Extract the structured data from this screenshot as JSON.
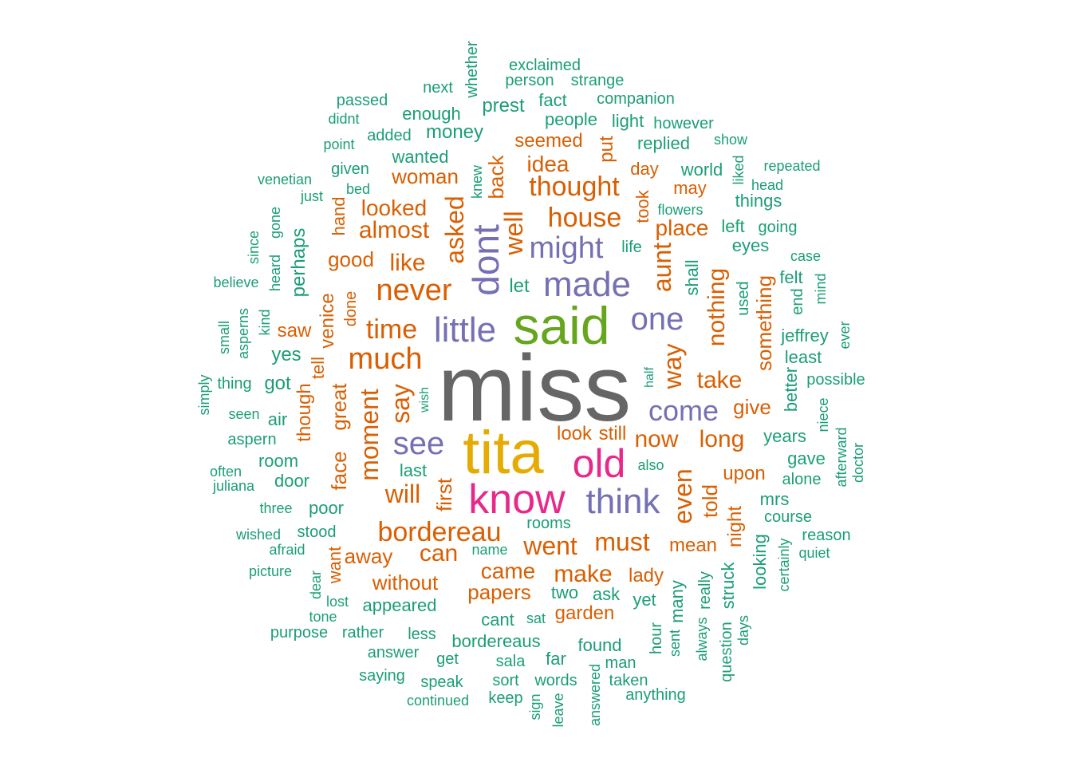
{
  "palette": {
    "green": "#1b9e77",
    "orange": "#d95f02",
    "purple": "#7570b3",
    "pink": "#e7298a",
    "lime": "#66a61e",
    "gold": "#e6ab02",
    "gray": "#666666"
  },
  "words": [
    {
      "text": "miss",
      "c": "gray"
    },
    {
      "text": "tita",
      "c": "gold"
    },
    {
      "text": "said",
      "c": "lime"
    },
    {
      "text": "know",
      "c": "pink"
    },
    {
      "text": "old",
      "c": "pink"
    },
    {
      "text": "made",
      "c": "purple"
    },
    {
      "text": "little",
      "c": "purple"
    },
    {
      "text": "dont",
      "c": "purple"
    },
    {
      "text": "might",
      "c": "purple"
    },
    {
      "text": "one",
      "c": "purple"
    },
    {
      "text": "see",
      "c": "purple"
    },
    {
      "text": "think",
      "c": "purple"
    },
    {
      "text": "come",
      "c": "purple"
    },
    {
      "text": "never",
      "c": "orange"
    },
    {
      "text": "much",
      "c": "orange"
    },
    {
      "text": "time",
      "c": "orange"
    },
    {
      "text": "bordereau",
      "c": "orange"
    },
    {
      "text": "thought",
      "c": "orange"
    },
    {
      "text": "house",
      "c": "orange"
    },
    {
      "text": "asked",
      "c": "orange"
    },
    {
      "text": "well",
      "c": "orange"
    },
    {
      "text": "aunt",
      "c": "orange"
    },
    {
      "text": "way",
      "c": "orange"
    },
    {
      "text": "moment",
      "c": "orange"
    },
    {
      "text": "say",
      "c": "orange"
    },
    {
      "text": "will",
      "c": "orange"
    },
    {
      "text": "went",
      "c": "orange"
    },
    {
      "text": "must",
      "c": "orange"
    },
    {
      "text": "even",
      "c": "orange"
    },
    {
      "text": "nothing",
      "c": "orange"
    },
    {
      "text": "almost",
      "c": "orange"
    },
    {
      "text": "looked",
      "c": "orange"
    },
    {
      "text": "like",
      "c": "orange"
    },
    {
      "text": "idea",
      "c": "orange"
    },
    {
      "text": "place",
      "c": "orange"
    },
    {
      "text": "woman",
      "c": "orange"
    },
    {
      "text": "back",
      "c": "orange"
    },
    {
      "text": "take",
      "c": "orange"
    },
    {
      "text": "now",
      "c": "orange"
    },
    {
      "text": "long",
      "c": "orange"
    },
    {
      "text": "first",
      "c": "orange"
    },
    {
      "text": "face",
      "c": "orange"
    },
    {
      "text": "great",
      "c": "orange"
    },
    {
      "text": "can",
      "c": "orange"
    },
    {
      "text": "came",
      "c": "orange"
    },
    {
      "text": "make",
      "c": "orange"
    },
    {
      "text": "told",
      "c": "orange"
    },
    {
      "text": "something",
      "c": "orange"
    },
    {
      "text": "good",
      "c": "orange"
    },
    {
      "text": "venice",
      "c": "orange"
    },
    {
      "text": "seemed",
      "c": "orange"
    },
    {
      "text": "put",
      "c": "orange"
    },
    {
      "text": "day",
      "c": "orange"
    },
    {
      "text": "may",
      "c": "orange"
    },
    {
      "text": "took",
      "c": "orange"
    },
    {
      "text": "perhaps",
      "c": "green"
    },
    {
      "text": "give",
      "c": "orange"
    },
    {
      "text": "upon",
      "c": "orange"
    },
    {
      "text": "papers",
      "c": "orange"
    },
    {
      "text": "without",
      "c": "orange"
    },
    {
      "text": "away",
      "c": "orange"
    },
    {
      "text": "mean",
      "c": "orange"
    },
    {
      "text": "night",
      "c": "orange"
    },
    {
      "text": "lady",
      "c": "orange"
    },
    {
      "text": "garden",
      "c": "orange"
    },
    {
      "text": "look",
      "c": "orange"
    },
    {
      "text": "still",
      "c": "orange"
    },
    {
      "text": "though",
      "c": "orange"
    },
    {
      "text": "saw",
      "c": "orange"
    },
    {
      "text": "tell",
      "c": "orange"
    },
    {
      "text": "done",
      "c": "orange"
    },
    {
      "text": "hand",
      "c": "orange"
    },
    {
      "text": "want",
      "c": "orange"
    },
    {
      "text": "shall",
      "c": "green"
    },
    {
      "text": "let",
      "c": "green"
    },
    {
      "text": "last",
      "c": "green"
    },
    {
      "text": "yes",
      "c": "green"
    },
    {
      "text": "got",
      "c": "green"
    },
    {
      "text": "air",
      "c": "green"
    },
    {
      "text": "room",
      "c": "green"
    },
    {
      "text": "door",
      "c": "green"
    },
    {
      "text": "poor",
      "c": "green"
    },
    {
      "text": "stood",
      "c": "green"
    },
    {
      "text": "wanted",
      "c": "green"
    },
    {
      "text": "money",
      "c": "green"
    },
    {
      "text": "enough",
      "c": "green"
    },
    {
      "text": "prest",
      "c": "green"
    },
    {
      "text": "people",
      "c": "green"
    },
    {
      "text": "replied",
      "c": "green"
    },
    {
      "text": "world",
      "c": "green"
    },
    {
      "text": "things",
      "c": "green"
    },
    {
      "text": "left",
      "c": "green"
    },
    {
      "text": "eyes",
      "c": "green"
    },
    {
      "text": "life",
      "c": "green"
    },
    {
      "text": "felt",
      "c": "green"
    },
    {
      "text": "end",
      "c": "green"
    },
    {
      "text": "jeffrey",
      "c": "green"
    },
    {
      "text": "least",
      "c": "green"
    },
    {
      "text": "better",
      "c": "green"
    },
    {
      "text": "years",
      "c": "green"
    },
    {
      "text": "gave",
      "c": "green"
    },
    {
      "text": "alone",
      "c": "green"
    },
    {
      "text": "mrs",
      "c": "green"
    },
    {
      "text": "course",
      "c": "green"
    },
    {
      "text": "looking",
      "c": "green"
    },
    {
      "text": "rooms",
      "c": "green"
    },
    {
      "text": "also",
      "c": "green"
    },
    {
      "text": "two",
      "c": "green"
    },
    {
      "text": "ask",
      "c": "green"
    },
    {
      "text": "yet",
      "c": "green"
    },
    {
      "text": "many",
      "c": "green"
    },
    {
      "text": "really",
      "c": "green"
    },
    {
      "text": "struck",
      "c": "green"
    },
    {
      "text": "appeared",
      "c": "green"
    },
    {
      "text": "cant",
      "c": "green"
    },
    {
      "text": "bordereaus",
      "c": "green"
    },
    {
      "text": "found",
      "c": "green"
    },
    {
      "text": "sala",
      "c": "green"
    },
    {
      "text": "far",
      "c": "green"
    },
    {
      "text": "hour",
      "c": "green"
    },
    {
      "text": "used",
      "c": "green"
    },
    {
      "text": "light",
      "c": "green"
    },
    {
      "text": "however",
      "c": "green"
    },
    {
      "text": "show",
      "c": "green"
    },
    {
      "text": "fact",
      "c": "green"
    },
    {
      "text": "companion",
      "c": "green"
    },
    {
      "text": "exclaimed",
      "c": "green"
    },
    {
      "text": "person",
      "c": "green"
    },
    {
      "text": "strange",
      "c": "green"
    },
    {
      "text": "whether",
      "c": "green"
    },
    {
      "text": "next",
      "c": "green"
    },
    {
      "text": "passed",
      "c": "green"
    },
    {
      "text": "didnt",
      "c": "green"
    },
    {
      "text": "added",
      "c": "green"
    },
    {
      "text": "point",
      "c": "green"
    },
    {
      "text": "given",
      "c": "green"
    },
    {
      "text": "venetian",
      "c": "green"
    },
    {
      "text": "just",
      "c": "green"
    },
    {
      "text": "bed",
      "c": "green"
    },
    {
      "text": "knew",
      "c": "green"
    },
    {
      "text": "liked",
      "c": "green"
    },
    {
      "text": "head",
      "c": "green"
    },
    {
      "text": "repeated",
      "c": "green"
    },
    {
      "text": "flowers",
      "c": "green"
    },
    {
      "text": "going",
      "c": "green"
    },
    {
      "text": "case",
      "c": "green"
    },
    {
      "text": "mind",
      "c": "green"
    },
    {
      "text": "ever",
      "c": "green"
    },
    {
      "text": "possible",
      "c": "green"
    },
    {
      "text": "niece",
      "c": "green"
    },
    {
      "text": "afterward",
      "c": "green"
    },
    {
      "text": "doctor",
      "c": "green"
    },
    {
      "text": "reason",
      "c": "green"
    },
    {
      "text": "quiet",
      "c": "green"
    },
    {
      "text": "certainly",
      "c": "green"
    },
    {
      "text": "days",
      "c": "green"
    },
    {
      "text": "question",
      "c": "green"
    },
    {
      "text": "always",
      "c": "green"
    },
    {
      "text": "sent",
      "c": "green"
    },
    {
      "text": "anything",
      "c": "green"
    },
    {
      "text": "taken",
      "c": "green"
    },
    {
      "text": "man",
      "c": "green"
    },
    {
      "text": "answered",
      "c": "green"
    },
    {
      "text": "words",
      "c": "green"
    },
    {
      "text": "leave",
      "c": "green"
    },
    {
      "text": "sign",
      "c": "green"
    },
    {
      "text": "keep",
      "c": "green"
    },
    {
      "text": "sort",
      "c": "green"
    },
    {
      "text": "continued",
      "c": "green"
    },
    {
      "text": "speak",
      "c": "green"
    },
    {
      "text": "saying",
      "c": "green"
    },
    {
      "text": "get",
      "c": "green"
    },
    {
      "text": "answer",
      "c": "green"
    },
    {
      "text": "less",
      "c": "green"
    },
    {
      "text": "purpose",
      "c": "green"
    },
    {
      "text": "rather",
      "c": "green"
    },
    {
      "text": "tone",
      "c": "green"
    },
    {
      "text": "lost",
      "c": "green"
    },
    {
      "text": "dear",
      "c": "green"
    },
    {
      "text": "picture",
      "c": "green"
    },
    {
      "text": "afraid",
      "c": "green"
    },
    {
      "text": "wished",
      "c": "green"
    },
    {
      "text": "three",
      "c": "green"
    },
    {
      "text": "juliana",
      "c": "green"
    },
    {
      "text": "often",
      "c": "green"
    },
    {
      "text": "aspern",
      "c": "green"
    },
    {
      "text": "seen",
      "c": "green"
    },
    {
      "text": "simply",
      "c": "green"
    },
    {
      "text": "thing",
      "c": "green"
    },
    {
      "text": "small",
      "c": "green"
    },
    {
      "text": "asperns",
      "c": "green"
    },
    {
      "text": "kind",
      "c": "green"
    },
    {
      "text": "believe",
      "c": "green"
    },
    {
      "text": "heard",
      "c": "green"
    },
    {
      "text": "gone",
      "c": "green"
    },
    {
      "text": "since",
      "c": "green"
    },
    {
      "text": "wish",
      "c": "green"
    },
    {
      "text": "half",
      "c": "green"
    },
    {
      "text": "name",
      "c": "green"
    },
    {
      "text": "sat",
      "c": "green"
    }
  ]
}
